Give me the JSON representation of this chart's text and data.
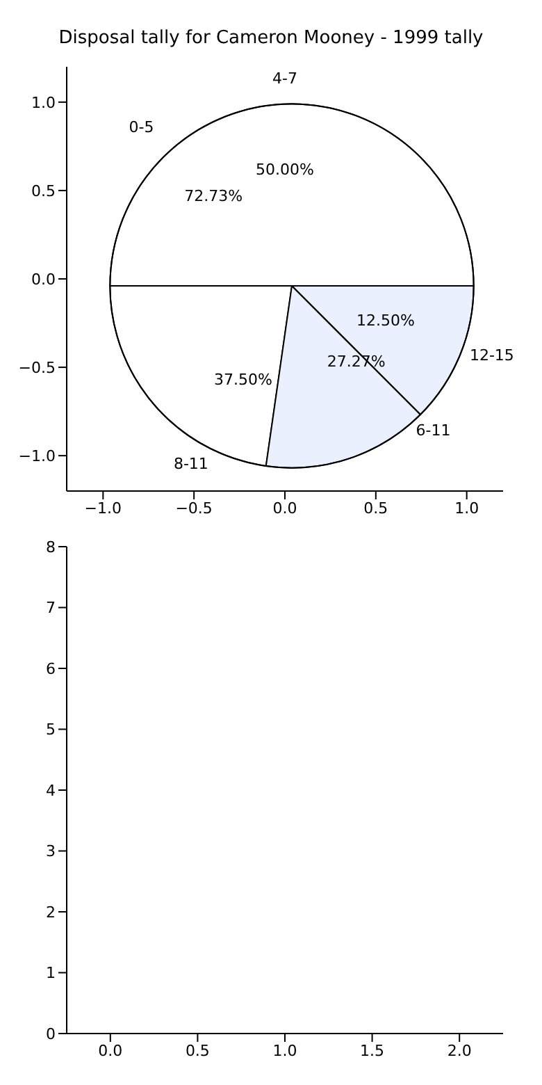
{
  "chart_data": [
    {
      "type": "pie",
      "title": "Disposal tally for Cameron Mooney - 1999 tally",
      "categories": [
        "0-5",
        "6-11"
      ],
      "values": [
        72.73,
        27.27
      ],
      "colors": [
        "#ffffff",
        "#eaf0fe"
      ],
      "value_labels": [
        "72.73%",
        "27.27%"
      ]
    },
    {
      "type": "pie",
      "categories": [
        "4-7",
        "8-11",
        "12-15"
      ],
      "values": [
        50,
        37.5,
        12.5
      ],
      "value_labels": [
        "50.00%",
        "37.50%",
        "12.50%"
      ]
    },
    {
      "type": "scatter",
      "xlim": [
        -1.2,
        1.2
      ],
      "xticks": [
        {
          "value": -1,
          "label": "−1.0"
        },
        {
          "value": -0.5,
          "label": "−0.5"
        },
        {
          "value": 0,
          "label": "0.0"
        },
        {
          "value": 0.5,
          "label": "0.5"
        },
        {
          "value": 1,
          "label": "1.0"
        }
      ],
      "ylim": [
        -1.2,
        1.2
      ],
      "yticks": [
        {
          "value": -1,
          "label": "−1.0"
        },
        {
          "value": -0.5,
          "label": "−0.5"
        },
        {
          "value": 0,
          "label": "0.0"
        },
        {
          "value": 0.5,
          "label": "0.5"
        },
        {
          "value": 1,
          "label": "1.0"
        }
      ]
    },
    {
      "type": "scatter",
      "xlim": [
        -0.25,
        2.25
      ],
      "xticks": [
        {
          "value": 0,
          "label": "0.0"
        },
        {
          "value": 0.5,
          "label": "0.5"
        },
        {
          "value": 1,
          "label": "1.0"
        },
        {
          "value": 1.5,
          "label": "1.5"
        },
        {
          "value": 2,
          "label": "2.0"
        }
      ],
      "ylim": [
        0,
        8
      ],
      "yticks": [
        0,
        1,
        2,
        3,
        4,
        5,
        6,
        7,
        8
      ]
    }
  ]
}
